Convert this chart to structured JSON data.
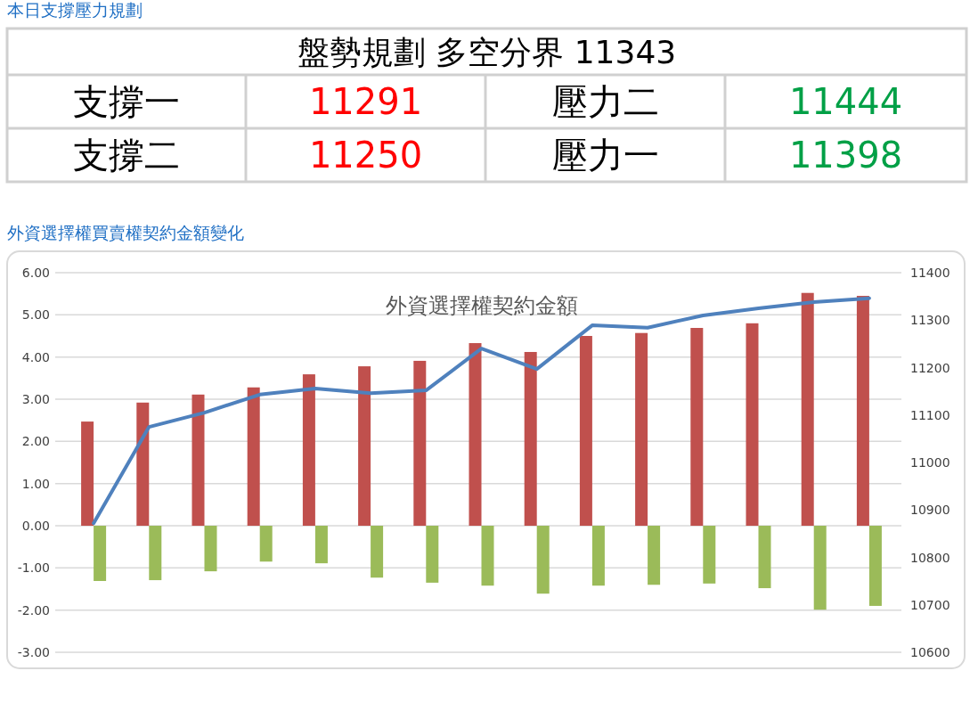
{
  "chart_data": [
    {
      "type": "other",
      "title": "本日支撐壓力規劃",
      "annotations": [
        "盤勢規劃 多空分界 11343",
        "支撐一",
        "11291",
        "壓力二",
        "11444",
        "支撐二",
        "11250",
        "壓力一",
        "11398"
      ],
      "colors": [
        "#000000",
        "#000000",
        "#ff0000",
        "#000000",
        "#00a046",
        "#000000",
        "#ff0000",
        "#000000",
        "#00a046"
      ]
    },
    {
      "type": "bar",
      "title": "外資選擇權買賣權契約金額變化",
      "subtitle": "外資選擇權契約金額",
      "categories": [
        null,
        null,
        null,
        null,
        null,
        null,
        null,
        null,
        null,
        null,
        null,
        null,
        null,
        null,
        null
      ],
      "series": [
        {
          "type": "bar",
          "color": "#c0504d",
          "values": [
            2.47,
            2.92,
            3.11,
            3.28,
            3.59,
            3.78,
            3.91,
            4.33,
            4.12,
            4.5,
            4.57,
            4.69,
            4.8,
            5.52,
            5.45
          ]
        },
        {
          "type": "bar",
          "color": "#9bbb59",
          "values": [
            -1.31,
            -1.29,
            -1.08,
            -0.85,
            -0.89,
            -1.23,
            -1.35,
            -1.42,
            -1.61,
            -1.42,
            -1.4,
            -1.37,
            -1.48,
            -1.99,
            -1.9
          ]
        },
        {
          "type": "line",
          "axis": "y2",
          "color": "#4f81bd",
          "values": [
            10872,
            11075,
            11105,
            11143,
            11156,
            11146,
            11152,
            11240,
            11197,
            11289,
            11284,
            11310,
            11325,
            11338,
            11346
          ]
        }
      ],
      "ylim": [
        -3,
        6
      ],
      "yticks": [
        {
          "value": 6,
          "label": "6.00"
        },
        {
          "value": 5,
          "label": "5.00"
        },
        {
          "value": 4,
          "label": "4.00"
        },
        {
          "value": 3,
          "label": "3.00"
        },
        {
          "value": 2,
          "label": "2.00"
        },
        {
          "value": 1,
          "label": "1.00"
        },
        {
          "value": 0,
          "label": "0.00"
        },
        {
          "value": -1,
          "label": "-1.00"
        },
        {
          "value": -2,
          "label": "-2.00"
        },
        {
          "value": -3,
          "label": "-3.00"
        }
      ],
      "y2lim": [
        10600,
        11400
      ],
      "y2ticks": [
        10600,
        10700,
        10800,
        10900,
        11000,
        11100,
        11200,
        11300,
        11400
      ],
      "grid": "y",
      "marker": "none",
      "line_style": "solid"
    }
  ]
}
